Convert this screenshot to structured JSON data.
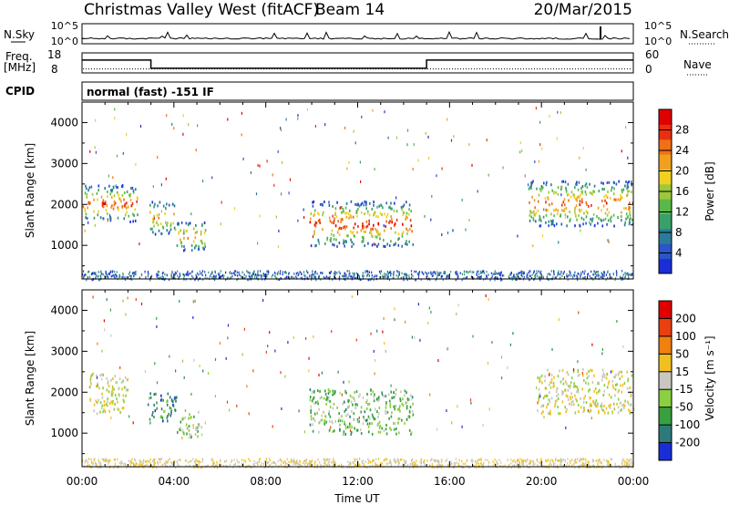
{
  "header": {
    "station": "Christmas Valley West (fitACF)",
    "beam": "Beam 14",
    "date": "20/Mar/2015"
  },
  "noise_panel": {
    "left_label": "N.Sky",
    "right_label": "N.Search",
    "ticks_left": [
      "10^5",
      "10^0"
    ],
    "ticks_right": [
      "10^5",
      "10^0"
    ]
  },
  "freq_panel": {
    "left_label_1": "Freq.",
    "left_label_2": "[MHz]",
    "right_label": "Nave",
    "ticks_left": [
      "18",
      "8"
    ],
    "ticks_right": [
      "60",
      "0"
    ],
    "freq_segments": [
      {
        "start_h": 0,
        "end_h": 3.0,
        "mhz": 14.4
      },
      {
        "start_h": 3.0,
        "end_h": 15.0,
        "mhz": 10.3
      },
      {
        "start_h": 15.0,
        "end_h": 24,
        "mhz": 14.4
      }
    ],
    "nave_level": 12
  },
  "cpid": {
    "label": "CPID",
    "text": "normal (fast) -151 IF"
  },
  "chart_data": [
    {
      "type": "heatmap",
      "name": "power",
      "ylabel": "Slant Range [km]",
      "xlabel": "",
      "y_ticks": [
        "4000",
        "3000",
        "2000",
        "1000"
      ],
      "y_tick_values": [
        4000,
        3000,
        2000,
        1000
      ],
      "ylim": [
        180,
        4500
      ],
      "xlim": [
        0,
        24
      ],
      "colorbar": {
        "label": "Power [dB]",
        "ticks": [
          "28",
          "24",
          "20",
          "16",
          "12",
          "8",
          "4"
        ],
        "range": [
          0,
          30
        ],
        "colors": [
          "#1a2ed8",
          "#2a56c8",
          "#2c7a9a",
          "#3aa06a",
          "#5ab84a",
          "#9cc83a",
          "#f0d020",
          "#f0a020",
          "#f07018",
          "#e83010",
          "#e00000"
        ]
      },
      "scatter_regions": [
        {
          "t0": 0.0,
          "t1": 2.4,
          "r0": 1600,
          "r1": 2500,
          "level": 0.55
        },
        {
          "t0": 2.9,
          "t1": 4.0,
          "r0": 1300,
          "r1": 2100,
          "level": 0.45
        },
        {
          "t0": 4.0,
          "t1": 5.4,
          "r0": 900,
          "r1": 1600,
          "level": 0.5
        },
        {
          "t0": 9.9,
          "t1": 14.4,
          "r0": 1000,
          "r1": 2100,
          "level": 0.6
        },
        {
          "t0": 19.4,
          "t1": 24.0,
          "r0": 1500,
          "r1": 2600,
          "level": 0.55
        }
      ]
    },
    {
      "type": "heatmap",
      "name": "velocity",
      "ylabel": "Slant Range [km]",
      "xlabel": "Time UT",
      "x_ticks": [
        "00:00",
        "04:00",
        "08:00",
        "12:00",
        "16:00",
        "20:00",
        "00:00"
      ],
      "x_tick_values": [
        0,
        4,
        8,
        12,
        16,
        20,
        24
      ],
      "y_ticks": [
        "4000",
        "3000",
        "2000",
        "1000"
      ],
      "y_tick_values": [
        4000,
        3000,
        2000,
        1000
      ],
      "ylim": [
        180,
        4500
      ],
      "xlim": [
        0,
        24
      ],
      "colorbar": {
        "label": "Velocity [m s⁻¹]",
        "ticks": [
          "200",
          "100",
          "50",
          "15",
          "-15",
          "-50",
          "-100",
          "-200"
        ],
        "colors": [
          "#1a2ed8",
          "#2e7a7a",
          "#38a040",
          "#8ad040",
          "#c8c8c0",
          "#f0c020",
          "#f08010",
          "#e84010",
          "#e00000"
        ]
      },
      "scatter_regions": [
        {
          "t0": 0.3,
          "t1": 2.0,
          "r0": 1500,
          "r1": 2500,
          "level": 0.5
        },
        {
          "t0": 2.8,
          "t1": 4.1,
          "r0": 1300,
          "r1": 2000,
          "level": 0.2
        },
        {
          "t0": 4.1,
          "t1": 5.2,
          "r0": 900,
          "r1": 1600,
          "level": 0.4
        },
        {
          "t0": 9.9,
          "t1": 14.4,
          "r0": 1000,
          "r1": 2100,
          "level": 0.35
        },
        {
          "t0": 19.8,
          "t1": 24.0,
          "r0": 1500,
          "r1": 2600,
          "level": 0.5
        }
      ]
    }
  ]
}
